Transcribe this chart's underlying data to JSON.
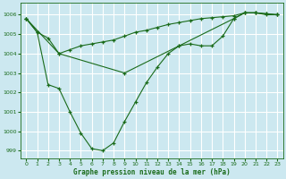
{
  "title": "Graphe pression niveau de la mer (hPa)",
  "bg_color": "#cce8f0",
  "grid_color": "#ffffff",
  "line_color": "#1a6b1a",
  "xlim": [
    -0.5,
    23.5
  ],
  "ylim": [
    998.6,
    1006.6
  ],
  "yticks": [
    999,
    1000,
    1001,
    1002,
    1003,
    1004,
    1005,
    1006
  ],
  "xticks": [
    0,
    1,
    2,
    3,
    4,
    5,
    6,
    7,
    8,
    9,
    10,
    11,
    12,
    13,
    14,
    15,
    16,
    17,
    18,
    19,
    20,
    21,
    22,
    23
  ],
  "series1_x": [
    0,
    1,
    2,
    3,
    4,
    5,
    6,
    7,
    8,
    9,
    10,
    11,
    12,
    13,
    14,
    15,
    16,
    17,
    18,
    19,
    20,
    21,
    22,
    23
  ],
  "series1_y": [
    1005.8,
    1005.1,
    1004.8,
    1004.0,
    1004.2,
    1004.4,
    1004.5,
    1004.6,
    1004.7,
    1004.9,
    1005.1,
    1005.2,
    1005.35,
    1005.5,
    1005.6,
    1005.7,
    1005.8,
    1005.85,
    1005.9,
    1005.95,
    1006.1,
    1006.1,
    1006.05,
    1006.0
  ],
  "series2_x": [
    0,
    3,
    9,
    14,
    19,
    20,
    21,
    22,
    23
  ],
  "series2_y": [
    1005.8,
    1004.0,
    1003.0,
    1004.4,
    1005.8,
    1006.1,
    1006.1,
    1006.05,
    1006.0
  ],
  "series3_x": [
    0,
    1,
    2,
    3,
    4,
    5,
    6,
    7,
    8,
    9,
    10,
    11,
    12,
    13,
    14,
    15,
    16,
    17,
    18,
    19,
    20,
    21,
    22,
    23
  ],
  "series3_y": [
    1005.8,
    1005.1,
    1002.4,
    1002.2,
    1001.0,
    999.9,
    999.1,
    999.0,
    999.4,
    1000.5,
    1001.5,
    1002.5,
    1003.3,
    1004.0,
    1004.4,
    1004.5,
    1004.4,
    1004.4,
    1004.9,
    1005.8,
    1006.1,
    1006.1,
    1006.0,
    1006.0
  ]
}
